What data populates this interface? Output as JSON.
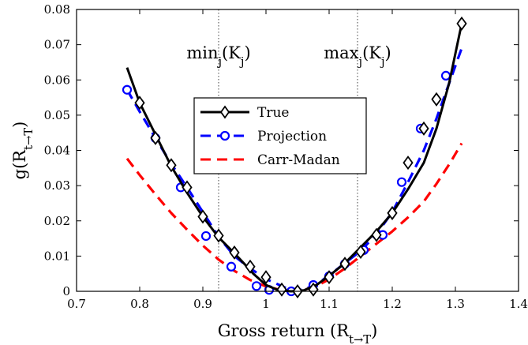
{
  "chart_data": {
    "type": "line",
    "xlabel": "Gross return (R_{t→T})",
    "ylabel": "g(R_{t→T})",
    "xlim": [
      0.7,
      1.4
    ],
    "ylim": [
      0,
      0.08
    ],
    "xticks": [
      "0.7",
      "0.8",
      "0.9",
      "1",
      "1.1",
      "1.2",
      "1.3",
      "1.4"
    ],
    "yticks": [
      "0",
      "0.01",
      "0.02",
      "0.03",
      "0.04",
      "0.05",
      "0.06",
      "0.07",
      "0.08"
    ],
    "grid": false,
    "legend_position": "center",
    "vlines": [
      {
        "x": 0.925,
        "label": "min_j(K_j)"
      },
      {
        "x": 1.145,
        "label": "max_j(K_j)"
      }
    ],
    "series": [
      {
        "name": "True",
        "color": "#000000",
        "style": "solid",
        "marker": "diamond",
        "x": [
          0.78,
          0.8,
          0.825,
          0.85,
          0.875,
          0.9,
          0.925,
          0.95,
          0.97,
          0.98,
          1.0,
          1.02,
          1.04,
          1.06,
          1.08,
          1.1,
          1.125,
          1.15,
          1.175,
          1.2,
          1.225,
          1.25,
          1.27,
          1.29,
          1.31
        ],
        "y": [
          0.0635,
          0.0535,
          0.0445,
          0.0355,
          0.028,
          0.0212,
          0.0153,
          0.0108,
          0.007,
          0.005,
          0.0018,
          0.0003,
          0.0,
          0.0003,
          0.0018,
          0.0044,
          0.008,
          0.0125,
          0.017,
          0.0222,
          0.029,
          0.0365,
          0.0462,
          0.059,
          0.076
        ],
        "marker_x": [
          0.8,
          0.825,
          0.85,
          0.875,
          0.9,
          0.925,
          0.95,
          0.975,
          1.0,
          1.025,
          1.05,
          1.075,
          1.1,
          1.125,
          1.15,
          1.175,
          1.2,
          1.225,
          1.25,
          1.27,
          1.31
        ],
        "marker_y": [
          0.0535,
          0.0435,
          0.0358,
          0.0295,
          0.0212,
          0.0158,
          0.011,
          0.007,
          0.004,
          0.0005,
          0.0,
          0.0005,
          0.004,
          0.0078,
          0.0112,
          0.016,
          0.0222,
          0.0365,
          0.0462,
          0.0545,
          0.076
        ]
      },
      {
        "name": "Projection",
        "color": "#0000ff",
        "style": "dashed",
        "marker": "circle",
        "x": [
          0.78,
          0.8,
          0.825,
          0.85,
          0.875,
          0.9,
          0.925,
          0.95,
          0.975,
          1.0,
          1.025,
          1.04,
          1.06,
          1.08,
          1.1,
          1.125,
          1.15,
          1.175,
          1.2,
          1.225,
          1.25,
          1.27,
          1.29,
          1.31
        ],
        "y": [
          0.0572,
          0.051,
          0.0435,
          0.0362,
          0.0295,
          0.0225,
          0.0155,
          0.01,
          0.0065,
          0.0035,
          0.0015,
          0.0002,
          0.0005,
          0.002,
          0.0045,
          0.008,
          0.0115,
          0.0162,
          0.0225,
          0.031,
          0.04,
          0.049,
          0.059,
          0.069
        ],
        "marker_x": [
          0.78,
          0.825,
          0.865,
          0.905,
          0.945,
          0.985,
          1.005,
          1.04,
          1.075,
          1.1,
          1.125,
          1.155,
          1.185,
          1.215,
          1.245,
          1.285
        ],
        "marker_y": [
          0.0572,
          0.0435,
          0.0295,
          0.0157,
          0.007,
          0.0015,
          0.0004,
          0.0,
          0.0018,
          0.0043,
          0.0078,
          0.0117,
          0.016,
          0.031,
          0.0462,
          0.0612
        ]
      },
      {
        "name": "Carr-Madan",
        "color": "#ff0000",
        "style": "dashed",
        "marker": "none",
        "x": [
          0.78,
          0.8,
          0.825,
          0.85,
          0.875,
          0.9,
          0.925,
          0.95,
          0.975,
          1.0,
          1.025,
          1.04,
          1.06,
          1.08,
          1.1,
          1.125,
          1.15,
          1.175,
          1.2,
          1.225,
          1.25,
          1.27,
          1.29,
          1.31
        ],
        "y": [
          0.0377,
          0.033,
          0.0275,
          0.0222,
          0.0175,
          0.013,
          0.009,
          0.0058,
          0.0032,
          0.0014,
          0.0003,
          0.0,
          0.0004,
          0.0015,
          0.0034,
          0.0065,
          0.01,
          0.0135,
          0.017,
          0.021,
          0.0255,
          0.0305,
          0.036,
          0.042
        ]
      }
    ]
  }
}
